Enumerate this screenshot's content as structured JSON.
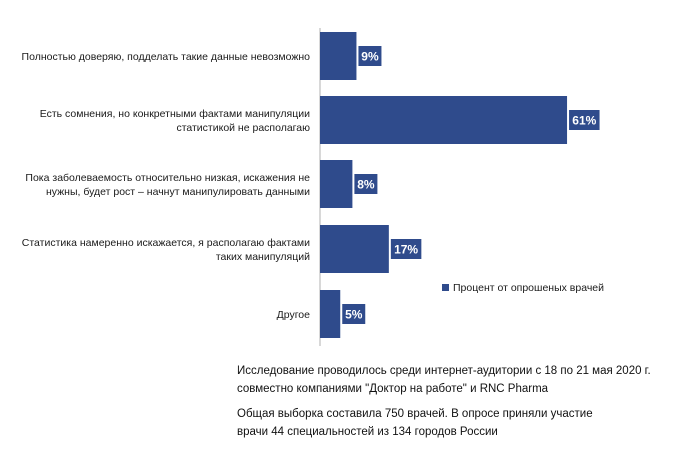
{
  "chart_data": {
    "type": "bar",
    "orientation": "horizontal",
    "categories": [
      [
        "Полностью доверяю, подделать такие данные невозможно"
      ],
      [
        "Есть сомнения, но конкретными фактами манипуляции",
        "статистикой не располагаю"
      ],
      [
        "Пока заболеваемость относительно низкая, искажения не",
        "нужны,  будет рост – начнут манипулировать данными"
      ],
      [
        "Статистика намеренно искажается, я располагаю фактами",
        "таких манипуляций"
      ],
      [
        "Другое"
      ]
    ],
    "series": [
      {
        "name": "Процент от опрошеных врачей",
        "values": [
          9,
          61,
          8,
          17,
          5
        ]
      }
    ],
    "data_labels": [
      "9%",
      "61%",
      "8%",
      "17%",
      "5%"
    ],
    "xlim": [
      0,
      70
    ],
    "grid": false,
    "legend_position": "right",
    "colors": {
      "bar": "#2f4b8c",
      "label_bg": "#2f4b8c",
      "axis": "#b0b0b0"
    }
  },
  "notes": {
    "line1": "Исследование проводилось среди интернет-аудитории  с 18 по 21 мая 2020 г.",
    "line2": "совместно компаниями \"Доктор  на работе\" и RNC Pharma",
    "line3": "Общая выборка составила 750 врачей. В опросе приняли участие",
    "line4": "врачи 44 специальностей из 134 городов России"
  }
}
